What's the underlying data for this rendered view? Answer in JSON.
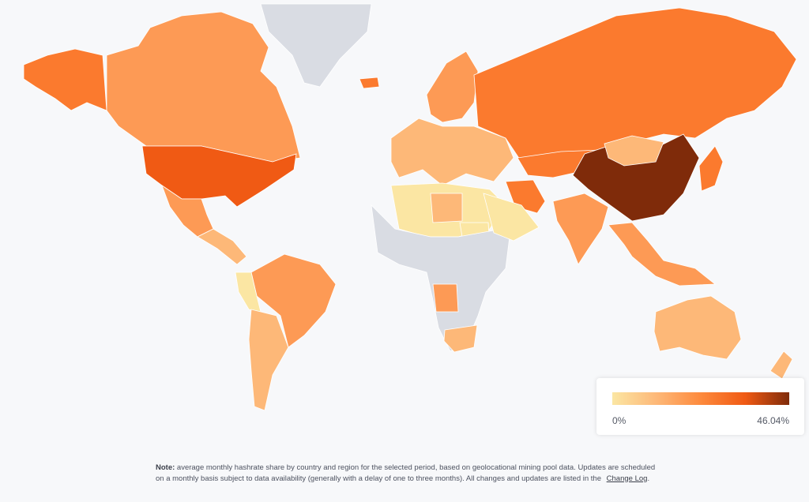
{
  "legend": {
    "min_label": "0%",
    "max_label": "46.04%",
    "color_stops": [
      "#fbe6a3",
      "#fdb878",
      "#fd8a3d",
      "#f05a14",
      "#7f2b0a"
    ]
  },
  "note": {
    "label": "Note:",
    "text": "average monthly hashrate share by country and region for the selected period, based on geolocational mining pool data. Updates are scheduled on a monthly basis subject to data availability (generally with a delay of one to three months). All changes and updates are listed in the",
    "link": "Change Log",
    "end": "."
  },
  "colors": {
    "background": "#f7f8fa",
    "no_data": "#d9dce3",
    "level_1": "#fbe6a3",
    "level_2": "#fdb878",
    "level_3": "#fd9a55",
    "level_4": "#fb7a2e",
    "level_5": "#f05a14",
    "level_max": "#7f2b0a"
  },
  "regions": [
    {
      "name": "Alaska",
      "level": "level_4"
    },
    {
      "name": "Canada",
      "level": "level_3"
    },
    {
      "name": "Greenland",
      "level": "no_data"
    },
    {
      "name": "Iceland",
      "level": "level_4"
    },
    {
      "name": "United States",
      "level": "level_5"
    },
    {
      "name": "Mexico",
      "level": "level_3"
    },
    {
      "name": "Central America",
      "level": "level_2"
    },
    {
      "name": "Brazil",
      "level": "level_3"
    },
    {
      "name": "Peru",
      "level": "level_1"
    },
    {
      "name": "Argentina",
      "level": "level_2"
    },
    {
      "name": "Europe",
      "level": "level_2"
    },
    {
      "name": "Scandinavia",
      "level": "level_3"
    },
    {
      "name": "Russia",
      "level": "level_4"
    },
    {
      "name": "Kazakhstan",
      "level": "level_4"
    },
    {
      "name": "China",
      "level": "level_max"
    },
    {
      "name": "Mongolia",
      "level": "level_2"
    },
    {
      "name": "Iran",
      "level": "level_4"
    },
    {
      "name": "India",
      "level": "level_3"
    },
    {
      "name": "Japan",
      "level": "level_4"
    },
    {
      "name": "Southeast Asia",
      "level": "level_3"
    },
    {
      "name": "Australia",
      "level": "level_2"
    },
    {
      "name": "New Zealand",
      "level": "level_2"
    },
    {
      "name": "North Africa",
      "level": "level_1"
    },
    {
      "name": "Libya",
      "level": "level_2"
    },
    {
      "name": "Sudan",
      "level": "level_1"
    },
    {
      "name": "Africa (no data)",
      "level": "no_data"
    },
    {
      "name": "Angola",
      "level": "level_3"
    },
    {
      "name": "South Africa",
      "level": "level_2"
    },
    {
      "name": "Arabian Peninsula",
      "level": "level_1"
    }
  ]
}
